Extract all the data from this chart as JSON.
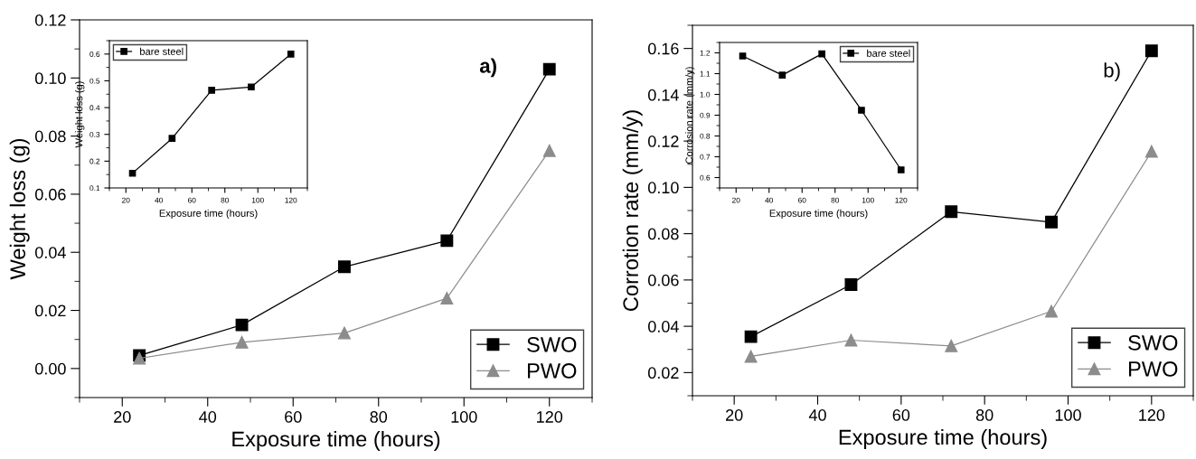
{
  "chart_data": [
    {
      "type": "line",
      "xlabel": "Exposure time (hours)",
      "ylabel": "Weight loss (g)",
      "annotations": [
        "a)"
      ],
      "x": [
        24,
        48,
        72,
        96,
        120
      ],
      "xlim": [
        10,
        130
      ],
      "xticks": [
        20,
        40,
        60,
        80,
        100,
        120
      ],
      "ylim": [
        -0.01,
        0.12
      ],
      "yticks": [
        {
          "value": 0,
          "label": "0.00"
        },
        {
          "value": 0.02,
          "label": "0.02"
        },
        {
          "value": 0.04,
          "label": "0.04"
        },
        {
          "value": 0.06,
          "label": "0.06"
        },
        {
          "value": 0.08,
          "label": "0.08"
        },
        {
          "value": 0.1,
          "label": "0.10"
        },
        {
          "value": 0.12,
          "label": "0.12"
        }
      ],
      "legend": "bottom right",
      "line_style": "solid",
      "series": [
        {
          "name": "SWO",
          "color": "#000000",
          "marker": "square",
          "values": [
            0.0045,
            0.015,
            0.035,
            0.044,
            0.103
          ]
        },
        {
          "name": "PWO",
          "color": "#8c8c8c",
          "marker": "triangle",
          "values": [
            0.0035,
            0.009,
            0.0122,
            0.0242,
            0.075
          ]
        }
      ]
    },
    {
      "type": "line",
      "xlabel": "Exposure time (hours)",
      "ylabel": "Weight loss (g)",
      "x": [
        24,
        48,
        72,
        96,
        120
      ],
      "xlim": [
        10,
        130
      ],
      "xticks": [
        20,
        40,
        60,
        80,
        100,
        120
      ],
      "ylim": [
        0.1,
        0.65
      ],
      "yticks": [
        0.1,
        0.2,
        0.3,
        0.4,
        0.5,
        0.6
      ],
      "legend": "top left",
      "line_style": "solid",
      "series": [
        {
          "name": "bare steel",
          "color": "#000000",
          "marker": "square",
          "values": [
            0.155,
            0.285,
            0.465,
            0.477,
            0.6
          ]
        }
      ]
    },
    {
      "type": "line",
      "xlabel": "Exposure time (hours)",
      "ylabel": "Corrotion rate (mm/y)",
      "annotations": [
        "b)"
      ],
      "x": [
        24,
        48,
        72,
        96,
        120
      ],
      "xlim": [
        10,
        130
      ],
      "xticks": [
        20,
        40,
        60,
        80,
        100,
        120
      ],
      "ylim": [
        0.01,
        0.17
      ],
      "yticks": [
        {
          "value": 0.02,
          "label": "0.02"
        },
        {
          "value": 0.04,
          "label": "0.04"
        },
        {
          "value": 0.06,
          "label": "0.06"
        },
        {
          "value": 0.08,
          "label": "0.08"
        },
        {
          "value": 0.1,
          "label": "0.10"
        },
        {
          "value": 0.12,
          "label": "0.12"
        },
        {
          "value": 0.14,
          "label": "0.14"
        },
        {
          "value": 0.16,
          "label": "0.16"
        }
      ],
      "legend": "bottom right",
      "line_style": "solid",
      "series": [
        {
          "name": "SWO",
          "color": "#000000",
          "marker": "square",
          "values": [
            0.0355,
            0.058,
            0.0895,
            0.085,
            0.159
          ]
        },
        {
          "name": "PWO",
          "color": "#8c8c8c",
          "marker": "triangle",
          "values": [
            0.027,
            0.034,
            0.0315,
            0.0465,
            0.1155
          ]
        }
      ]
    },
    {
      "type": "line",
      "xlabel": "Exposure time (hours)",
      "ylabel": "Corrosion rate (mm/y)",
      "x": [
        24,
        48,
        72,
        96,
        120
      ],
      "xlim": [
        10,
        130
      ],
      "xticks": [
        20,
        40,
        60,
        80,
        100,
        120
      ],
      "ylim": [
        0.55,
        1.25
      ],
      "yticks": [
        0.6,
        0.7,
        0.8,
        0.9,
        {
          "value": 1.0,
          "label": "1.0"
        },
        1.1,
        1.2
      ],
      "legend": "top right",
      "line_style": "solid",
      "series": [
        {
          "name": "bare steel",
          "color": "#000000",
          "marker": "square",
          "values": [
            1.185,
            1.093,
            1.195,
            0.924,
            0.637
          ]
        }
      ]
    }
  ]
}
